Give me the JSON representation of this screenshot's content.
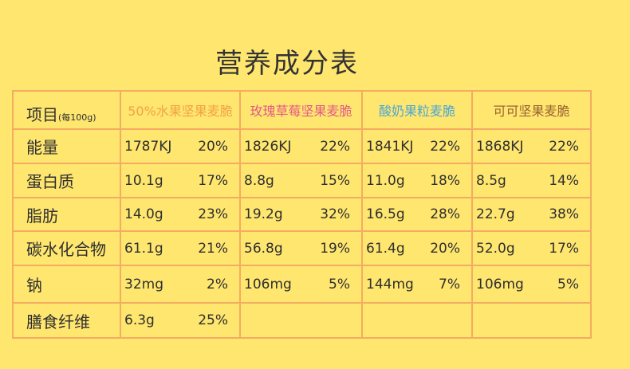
{
  "title": "营养成分表",
  "header": {
    "item": "项目",
    "unit": "(每100g)",
    "products": [
      {
        "name": "50%水果坚果麦脆",
        "color": "#f2a248"
      },
      {
        "name": "玫瑰草莓坚果麦脆",
        "color": "#e45a86"
      },
      {
        "name": "酸奶果粒麦脆",
        "color": "#4ba6d6"
      },
      {
        "name": "可可坚果麦脆",
        "color": "#9a6230"
      }
    ]
  },
  "rows": [
    {
      "label": "能量",
      "cells": [
        [
          "1787KJ",
          "20%"
        ],
        [
          "1826KJ",
          "22%"
        ],
        [
          "1841KJ",
          "22%"
        ],
        [
          "1868KJ",
          "22%"
        ]
      ]
    },
    {
      "label": "蛋白质",
      "cells": [
        [
          "10.1g",
          "17%"
        ],
        [
          "8.8g",
          "15%"
        ],
        [
          "11.0g",
          "18%"
        ],
        [
          "8.5g",
          "14%"
        ]
      ]
    },
    {
      "label": "脂肪",
      "cells": [
        [
          "14.0g",
          "23%"
        ],
        [
          "19.2g",
          "32%"
        ],
        [
          "16.5g",
          "28%"
        ],
        [
          "22.7g",
          "38%"
        ]
      ]
    },
    {
      "label": "碳水化合物",
      "cells": [
        [
          "61.1g",
          "21%"
        ],
        [
          "56.8g",
          "19%"
        ],
        [
          "61.4g",
          "20%"
        ],
        [
          "52.0g",
          "17%"
        ]
      ]
    },
    {
      "label": "钠",
      "cells": [
        [
          "32mg",
          "2%"
        ],
        [
          "106mg",
          "5%"
        ],
        [
          "144mg",
          "7%"
        ],
        [
          "106mg",
          "5%"
        ]
      ]
    },
    {
      "label": "膳食纤维",
      "cells": [
        [
          "6.3g",
          "25%"
        ],
        [
          "",
          ""
        ],
        [
          "",
          ""
        ],
        [
          "",
          ""
        ]
      ]
    }
  ]
}
